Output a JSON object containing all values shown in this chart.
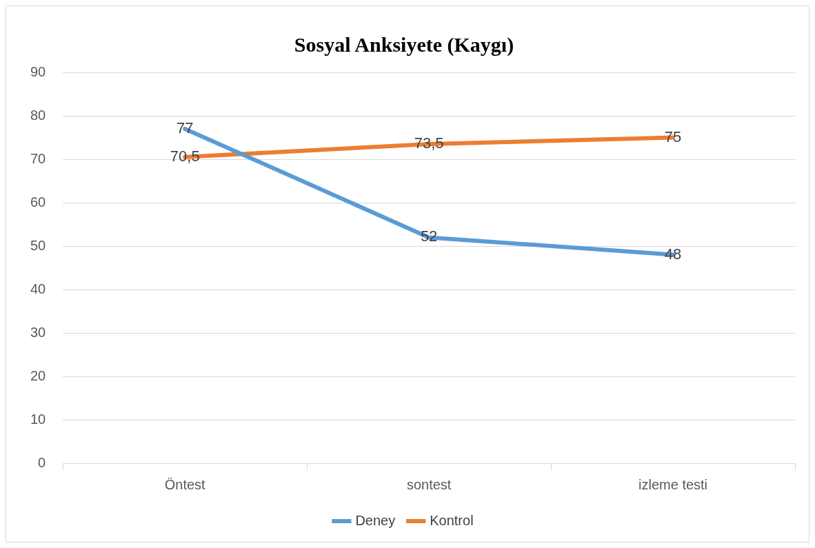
{
  "chart_data": {
    "type": "line",
    "title": "Sosyal Anksiyete (Kaygı)",
    "categories": [
      "Öntest",
      "sontest",
      "izleme testi"
    ],
    "series": [
      {
        "name": "Deney",
        "color": "#5b9bd5",
        "values": [
          77,
          52,
          48
        ],
        "value_labels": [
          "77",
          "52",
          "48"
        ]
      },
      {
        "name": "Kontrol",
        "color": "#ed7d31",
        "values": [
          70.5,
          73.5,
          75
        ],
        "value_labels": [
          "70,5",
          "73,5",
          "75"
        ]
      }
    ],
    "ylim": [
      0,
      90
    ],
    "yticks": [
      0,
      10,
      20,
      30,
      40,
      50,
      60,
      70,
      80,
      90
    ],
    "grid": "y",
    "legend": "bottom",
    "marker": "none",
    "line_style": "solid"
  }
}
